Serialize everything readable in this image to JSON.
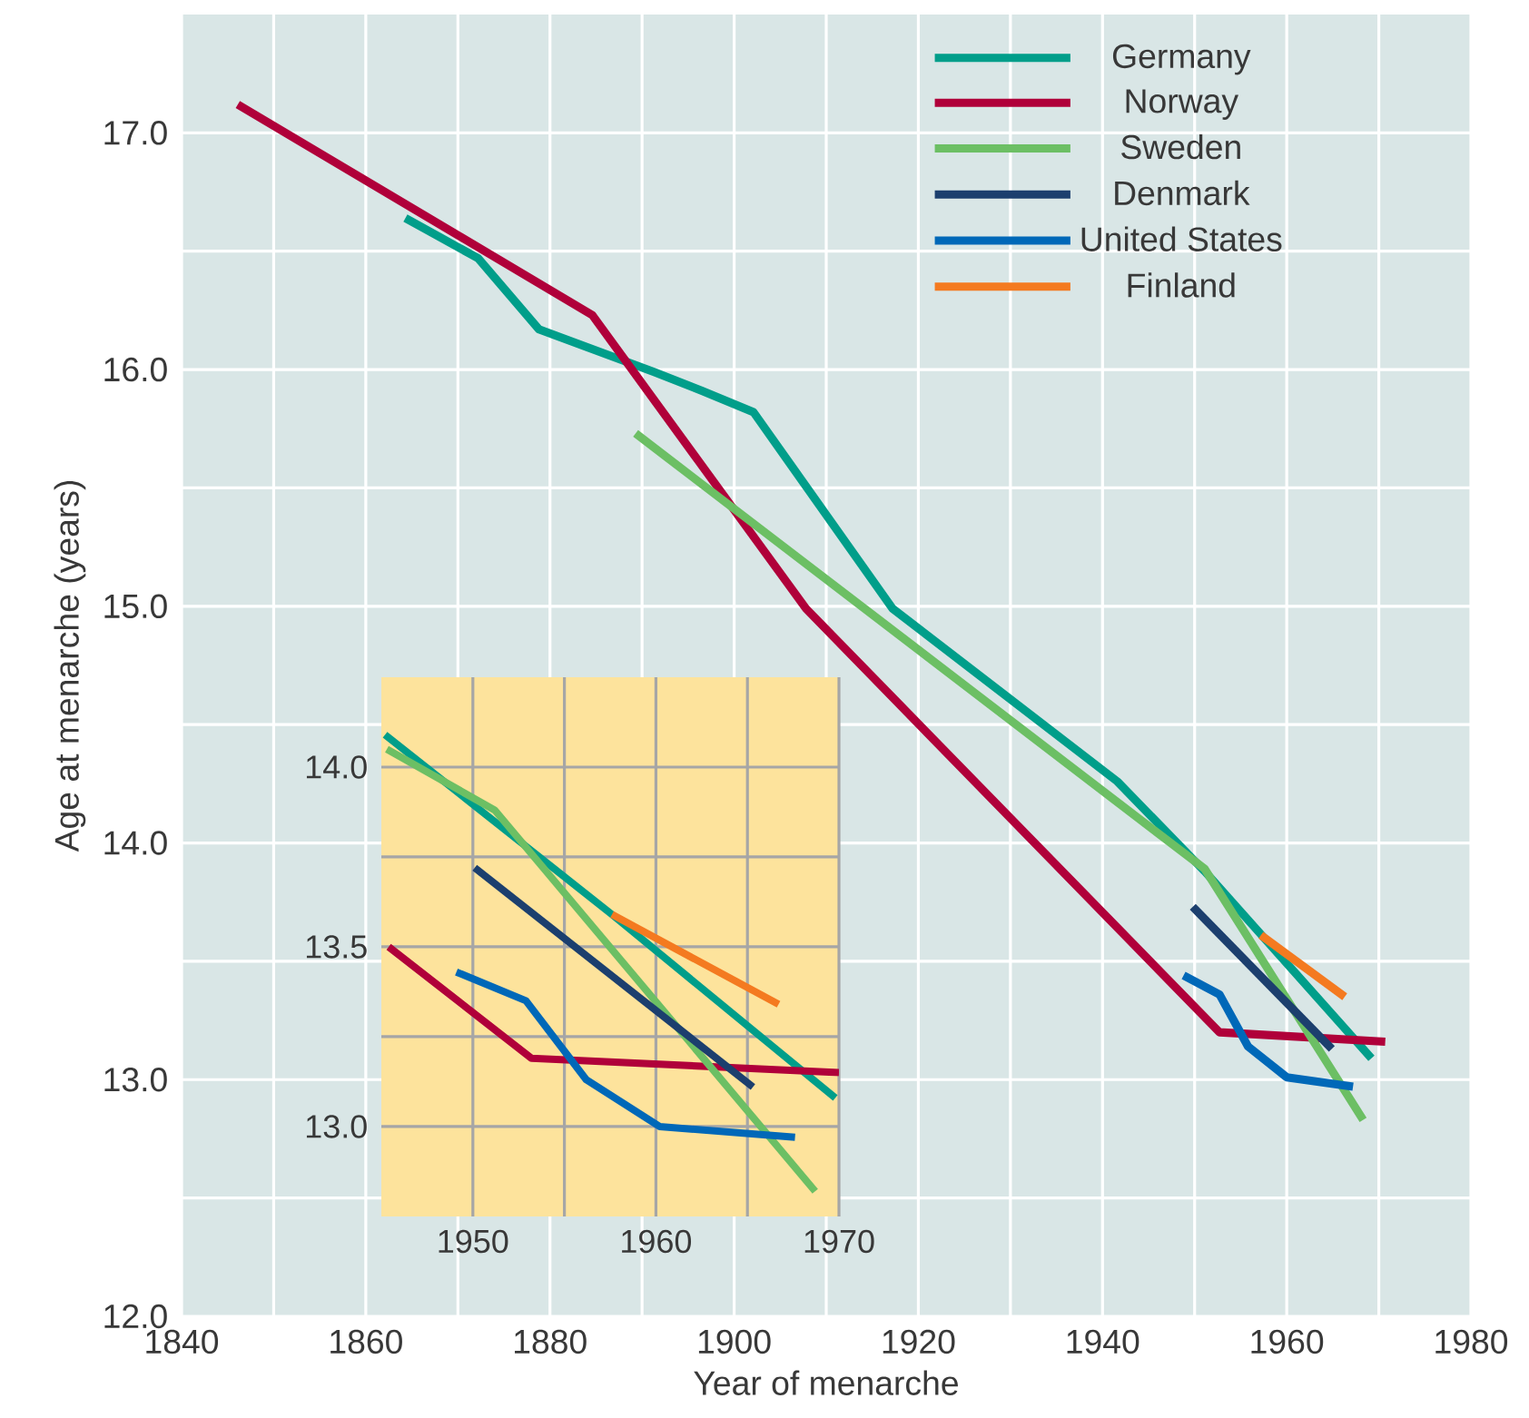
{
  "chart_data": [
    {
      "type": "line",
      "xlabel": "Year of menarche",
      "ylabel": "Age at menarche (years)",
      "xlim": [
        1840,
        1980
      ],
      "ylim": [
        12,
        17.5
      ],
      "xticks": [
        1840,
        1860,
        1880,
        1900,
        1920,
        1940,
        1960,
        1980
      ],
      "yticks": [
        {
          "value": 12,
          "label": "12.0"
        },
        {
          "value": 13,
          "label": "13.0"
        },
        {
          "value": 14,
          "label": "14.0"
        },
        {
          "value": 15,
          "label": "15.0"
        },
        {
          "value": 16,
          "label": "16.0"
        },
        {
          "value": 17,
          "label": "17.0"
        }
      ],
      "grid": true,
      "legend": "top right",
      "marker": "none",
      "line_style": "solid",
      "series": [
        {
          "name": "Germany",
          "color": "#009e8a",
          "x": [
            1864.3,
            1872.2,
            1878.8,
            1891.3,
            1896.5,
            1902.1,
            1917.2,
            1941.6,
            1951.1,
            1969.2
          ],
          "values": [
            16.64,
            16.47,
            16.17,
            15.99,
            15.91,
            15.82,
            14.99,
            14.26,
            13.88,
            13.09
          ]
        },
        {
          "name": "Norway",
          "color": "#b0003a",
          "x": [
            1846.1,
            1884.6,
            1907.8,
            1952.7,
            1970.7
          ],
          "values": [
            17.12,
            16.23,
            14.99,
            13.2,
            13.16
          ]
        },
        {
          "name": "Sweden",
          "color": "#6cbf64",
          "x": [
            1889.3,
            1951.1,
            1968.3
          ],
          "values": [
            15.73,
            13.89,
            12.83
          ]
        },
        {
          "name": "Denmark",
          "color": "#1c3f6e",
          "x": [
            1949.8,
            1964.9
          ],
          "values": [
            13.73,
            13.13
          ]
        },
        {
          "name": "United States",
          "color": "#0068b8",
          "x": [
            1948.8,
            1952.7,
            1955.8,
            1960.0,
            1967.2
          ],
          "values": [
            13.44,
            13.36,
            13.14,
            13.01,
            12.97
          ]
        },
        {
          "name": "Finland",
          "color": "#f47a20",
          "x": [
            1957.2,
            1966.3
          ],
          "values": [
            13.61,
            13.35
          ]
        }
      ]
    },
    {
      "type": "line",
      "xlim": [
        1945,
        1970
      ],
      "ylim": [
        12.75,
        14.25
      ],
      "xticks": [
        1950,
        1960,
        1970
      ],
      "yticks": [
        {
          "value": 13,
          "label": "13.0"
        },
        {
          "value": 13.5,
          "label": "13.5"
        },
        {
          "value": 14,
          "label": "14.0"
        }
      ],
      "grid": true,
      "marker": "none",
      "line_style": "solid",
      "series": [
        {
          "color": "#009e8a",
          "x": [
            1945.2,
            1957.6,
            1969.8
          ],
          "values": [
            14.09,
            13.59,
            13.08
          ]
        },
        {
          "color": "#b0003a",
          "x": [
            1945.4,
            1953.2,
            1970.0
          ],
          "values": [
            13.5,
            13.19,
            13.15
          ]
        },
        {
          "color": "#6cbf64",
          "x": [
            1945.3,
            1951.2,
            1968.7
          ],
          "values": [
            14.05,
            13.88,
            12.82
          ]
        },
        {
          "color": "#1c3f6e",
          "x": [
            1950.1,
            1965.3
          ],
          "values": [
            13.72,
            13.11
          ]
        },
        {
          "color": "#0068b8",
          "x": [
            1949.1,
            1952.9,
            1956.2,
            1960.2,
            1967.6
          ],
          "values": [
            13.43,
            13.35,
            13.13,
            13.0,
            12.97
          ]
        },
        {
          "color": "#f47a20",
          "x": [
            1957.6,
            1966.7
          ],
          "values": [
            13.59,
            13.34
          ]
        }
      ]
    }
  ]
}
